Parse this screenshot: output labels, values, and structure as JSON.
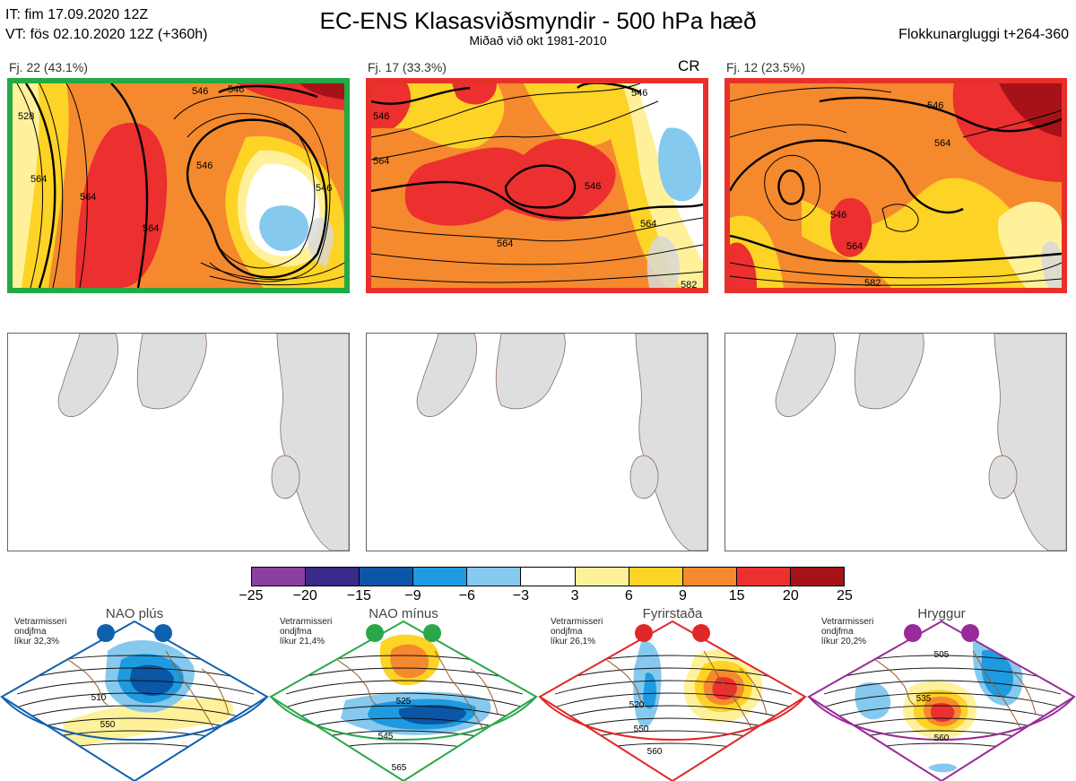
{
  "header": {
    "it": "IT: fim 17.09.2020 12Z",
    "vt": "VT: fös 02.10.2020 12Z  (+360h)",
    "title": "EC-ENS Klasasviðsmyndir - 500 hPa hæð",
    "subtitle": "Miðað við okt 1981-2010",
    "window": "Flokkunargluggi t+264-360"
  },
  "clusters": [
    {
      "label": "Fj. 22 (43.1%)",
      "border": "#22aa44",
      "contours": [
        "528",
        "546",
        "564",
        "564",
        "546",
        "564",
        "546",
        "546"
      ],
      "badge": ""
    },
    {
      "label": "Fj. 17 (33.3%)",
      "border": "#e8302a",
      "contours": [
        "546",
        "564",
        "564",
        "546",
        "564",
        "546",
        "582"
      ],
      "badge": "CR"
    },
    {
      "label": "Fj. 12 (23.5%)",
      "border": "#e8302a",
      "contours": [
        "546",
        "564",
        "546",
        "564",
        "582"
      ],
      "badge": ""
    }
  ],
  "colorbar": {
    "colors": [
      "#8b3fa0",
      "#3a2a8a",
      "#0b56a6",
      "#1e9be0",
      "#86c9ee",
      "#ffffff",
      "#fff19a",
      "#fdd326",
      "#f5892e",
      "#ec2f2f",
      "#a61218"
    ],
    "ticks": [
      "−25",
      "−20",
      "−15",
      "−9",
      "−6",
      "−3",
      "3",
      "6",
      "9",
      "15",
      "20",
      "25"
    ]
  },
  "regimes": [
    {
      "name": "NAO plús",
      "info": [
        "Vetrarmisseri",
        "ondjfma",
        "líkur 32,3%"
      ],
      "color": "#1060b0",
      "labels": [
        "510",
        "550"
      ]
    },
    {
      "name": "NAO mínus",
      "info": [
        "Vetrarmisseri",
        "ondjfma",
        "líkur 21,4%"
      ],
      "color": "#28a84a",
      "labels": [
        "525",
        "545",
        "565"
      ]
    },
    {
      "name": "Fyrirstaða",
      "info": [
        "Vetrarmisseri",
        "ondjfma",
        "líkur 26,1%"
      ],
      "color": "#e02828",
      "labels": [
        "520",
        "550",
        "560"
      ]
    },
    {
      "name": "Hryggur",
      "info": [
        "Vetrarmisseri",
        "ondjfma",
        "líkur 20,2%"
      ],
      "color": "#992a99",
      "labels": [
        "505",
        "535",
        "560"
      ]
    }
  ]
}
